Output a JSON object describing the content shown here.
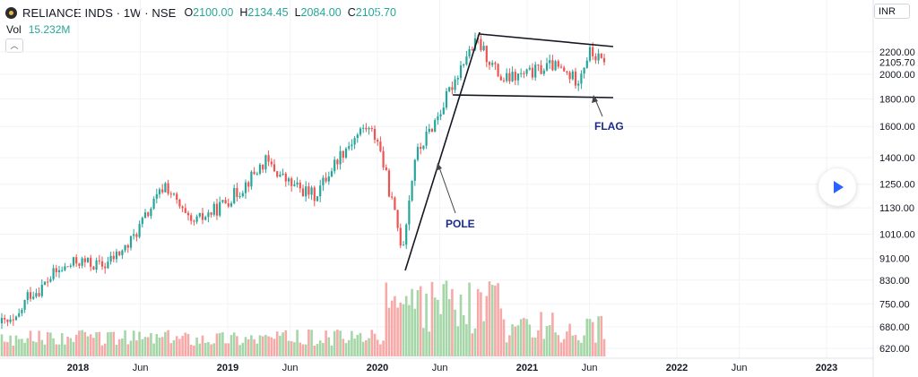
{
  "header": {
    "title": "RELIANCE INDS · 1W · NSE",
    "open_label": "O",
    "open": "2100.00",
    "high_label": "H",
    "high": "2134.45",
    "low_label": "L",
    "low": "2084.00",
    "close_label": "C",
    "close": "2105.70",
    "vol_label": "Vol",
    "vol": "15.232M"
  },
  "currency": "INR",
  "annotations": {
    "pole": "POLE",
    "flag": "FLAG"
  },
  "colors": {
    "up": "#26a69a",
    "down": "#ef5350",
    "vol_up": "#a5d6a7",
    "vol_down": "#f7a9a8"
  },
  "chart_data": {
    "type": "candlestick",
    "x_ticks": [
      "2018",
      "Jun",
      "2019",
      "Jun",
      "2020",
      "Jun",
      "2021",
      "Jun",
      "2022",
      "Jun",
      "2023"
    ],
    "y_ticks": [
      "2200.00",
      "2105.70",
      "2000.00",
      "1800.00",
      "1600.00",
      "1400.00",
      "1250.00",
      "1130.00",
      "1010.00",
      "910.00",
      "830.00",
      "750.00",
      "680.00",
      "620.00"
    ],
    "y_scale": "log",
    "last_price": 2105.7,
    "price_path": [
      [
        "2017-08",
        690
      ],
      [
        "2017-09",
        780
      ],
      [
        "2017-10",
        800
      ],
      [
        "2017-11",
        850
      ],
      [
        "2018-01",
        900
      ],
      [
        "2018-03",
        880
      ],
      [
        "2018-05",
        960
      ],
      [
        "2018-08",
        1250
      ],
      [
        "2018-10",
        1050
      ],
      [
        "2018-12",
        1120
      ],
      [
        "2019-02",
        1220
      ],
      [
        "2019-04",
        1380
      ],
      [
        "2019-06",
        1250
      ],
      [
        "2019-08",
        1190
      ],
      [
        "2019-10",
        1420
      ],
      [
        "2019-12",
        1600
      ],
      [
        "2020-01",
        1520
      ],
      [
        "2020-03",
        950
      ],
      [
        "2020-04",
        1400
      ],
      [
        "2020-06",
        1700
      ],
      [
        "2020-08",
        2150
      ],
      [
        "2020-09",
        2300
      ],
      [
        "2020-11",
        1950
      ],
      [
        "2021-01",
        2000
      ],
      [
        "2021-03",
        2080
      ],
      [
        "2021-05",
        1950
      ],
      [
        "2021-06",
        2200
      ],
      [
        "2021-07",
        2105.7
      ]
    ],
    "volume_profile": "higher volume during 2020 pole and flag formation"
  }
}
